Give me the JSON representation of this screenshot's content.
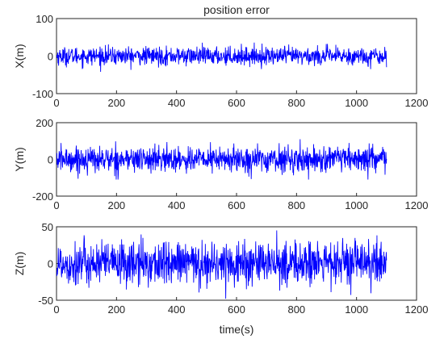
{
  "title": "position error",
  "line_color": "#0000ff",
  "axis_color": "#262626",
  "chart_data": [
    {
      "type": "line",
      "title": "position error",
      "xlabel": "",
      "ylabel": "X(m)",
      "xlim": [
        0,
        1200
      ],
      "ylim": [
        -100,
        100
      ],
      "xticks": [
        "0",
        "200",
        "400",
        "600",
        "800",
        "1000",
        "1200"
      ],
      "yticks": [
        "-100",
        "0",
        "100"
      ],
      "n_points": 1100,
      "series": [
        {
          "y_min": -50,
          "y_max": 40,
          "y_approx_std": 12
        }
      ]
    },
    {
      "type": "line",
      "xlabel": "",
      "ylabel": "Y(m)",
      "xlim": [
        0,
        1200
      ],
      "ylim": [
        -200,
        200
      ],
      "xticks": [
        "0",
        "200",
        "400",
        "600",
        "800",
        "1000",
        "1200"
      ],
      "yticks": [
        "-200",
        "0",
        "200"
      ],
      "n_points": 1100,
      "series": [
        {
          "y_min": -110,
          "y_max": 115,
          "y_approx_std": 35
        }
      ]
    },
    {
      "type": "line",
      "xlabel": "time(s)",
      "ylabel": "Z(m)",
      "xlim": [
        0,
        1200
      ],
      "ylim": [
        -50,
        50
      ],
      "xticks": [
        "0",
        "200",
        "400",
        "600",
        "800",
        "1000",
        "1200"
      ],
      "yticks": [
        "-50",
        "0",
        "50"
      ],
      "n_points": 1100,
      "series": [
        {
          "y_min": -48,
          "y_max": 45,
          "y_approx_std": 15
        }
      ]
    }
  ]
}
